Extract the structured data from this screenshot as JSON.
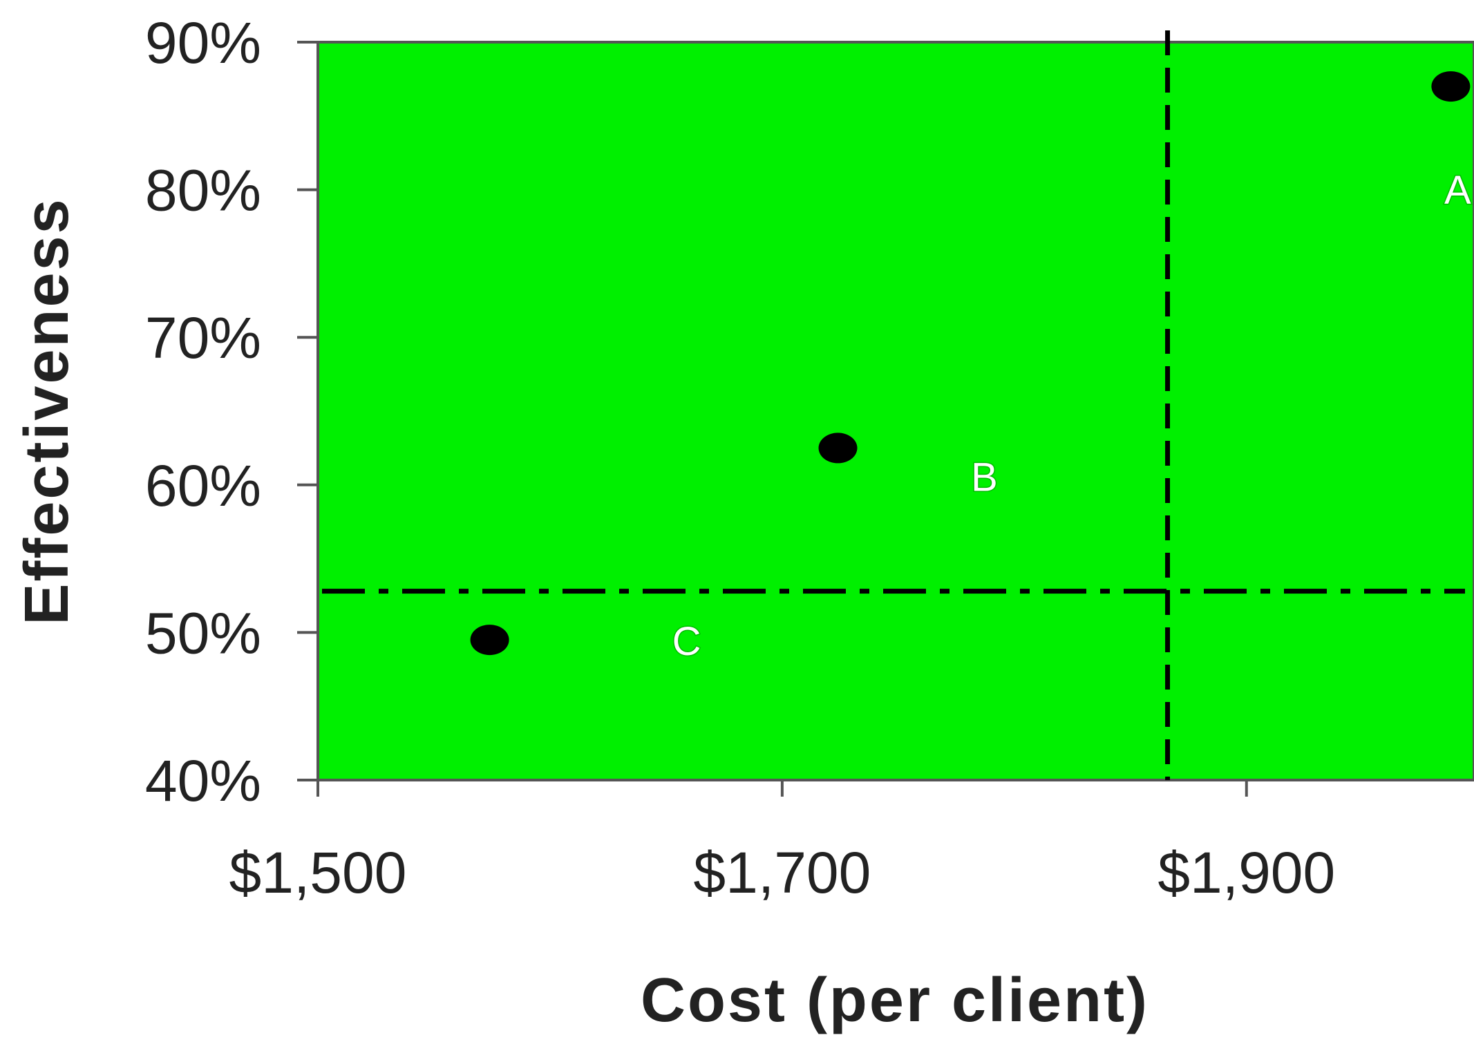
{
  "chart_data": {
    "type": "scatter",
    "title": "",
    "xlabel": "Cost (per client)",
    "ylabel": "Effectiveness",
    "xlim": [
      1500,
      1998
    ],
    "ylim": [
      40,
      90
    ],
    "x_ticks": [
      1500,
      1700,
      1900
    ],
    "x_tick_labels": [
      "$1,500",
      "$1,700",
      "$1,900"
    ],
    "y_ticks": [
      40,
      50,
      60,
      70,
      80,
      90
    ],
    "y_tick_labels": [
      "40%",
      "50%",
      "60%",
      "70%",
      "80%",
      "90%"
    ],
    "grid": false,
    "legend": "none",
    "plot_background": "#00f000",
    "point_color": "#000000",
    "label_color": "#ffffff",
    "points": [
      {
        "label": "A",
        "x": 1988,
        "y": 87
      },
      {
        "label": "B",
        "x": 1724,
        "y": 62.5
      },
      {
        "label": "C",
        "x": 1574,
        "y": 49.5
      }
    ],
    "reference_lines": [
      {
        "orientation": "vertical",
        "value": 1866,
        "style": "dashed"
      },
      {
        "orientation": "horizontal",
        "value": 52.8,
        "style": "dash-dot"
      }
    ]
  }
}
